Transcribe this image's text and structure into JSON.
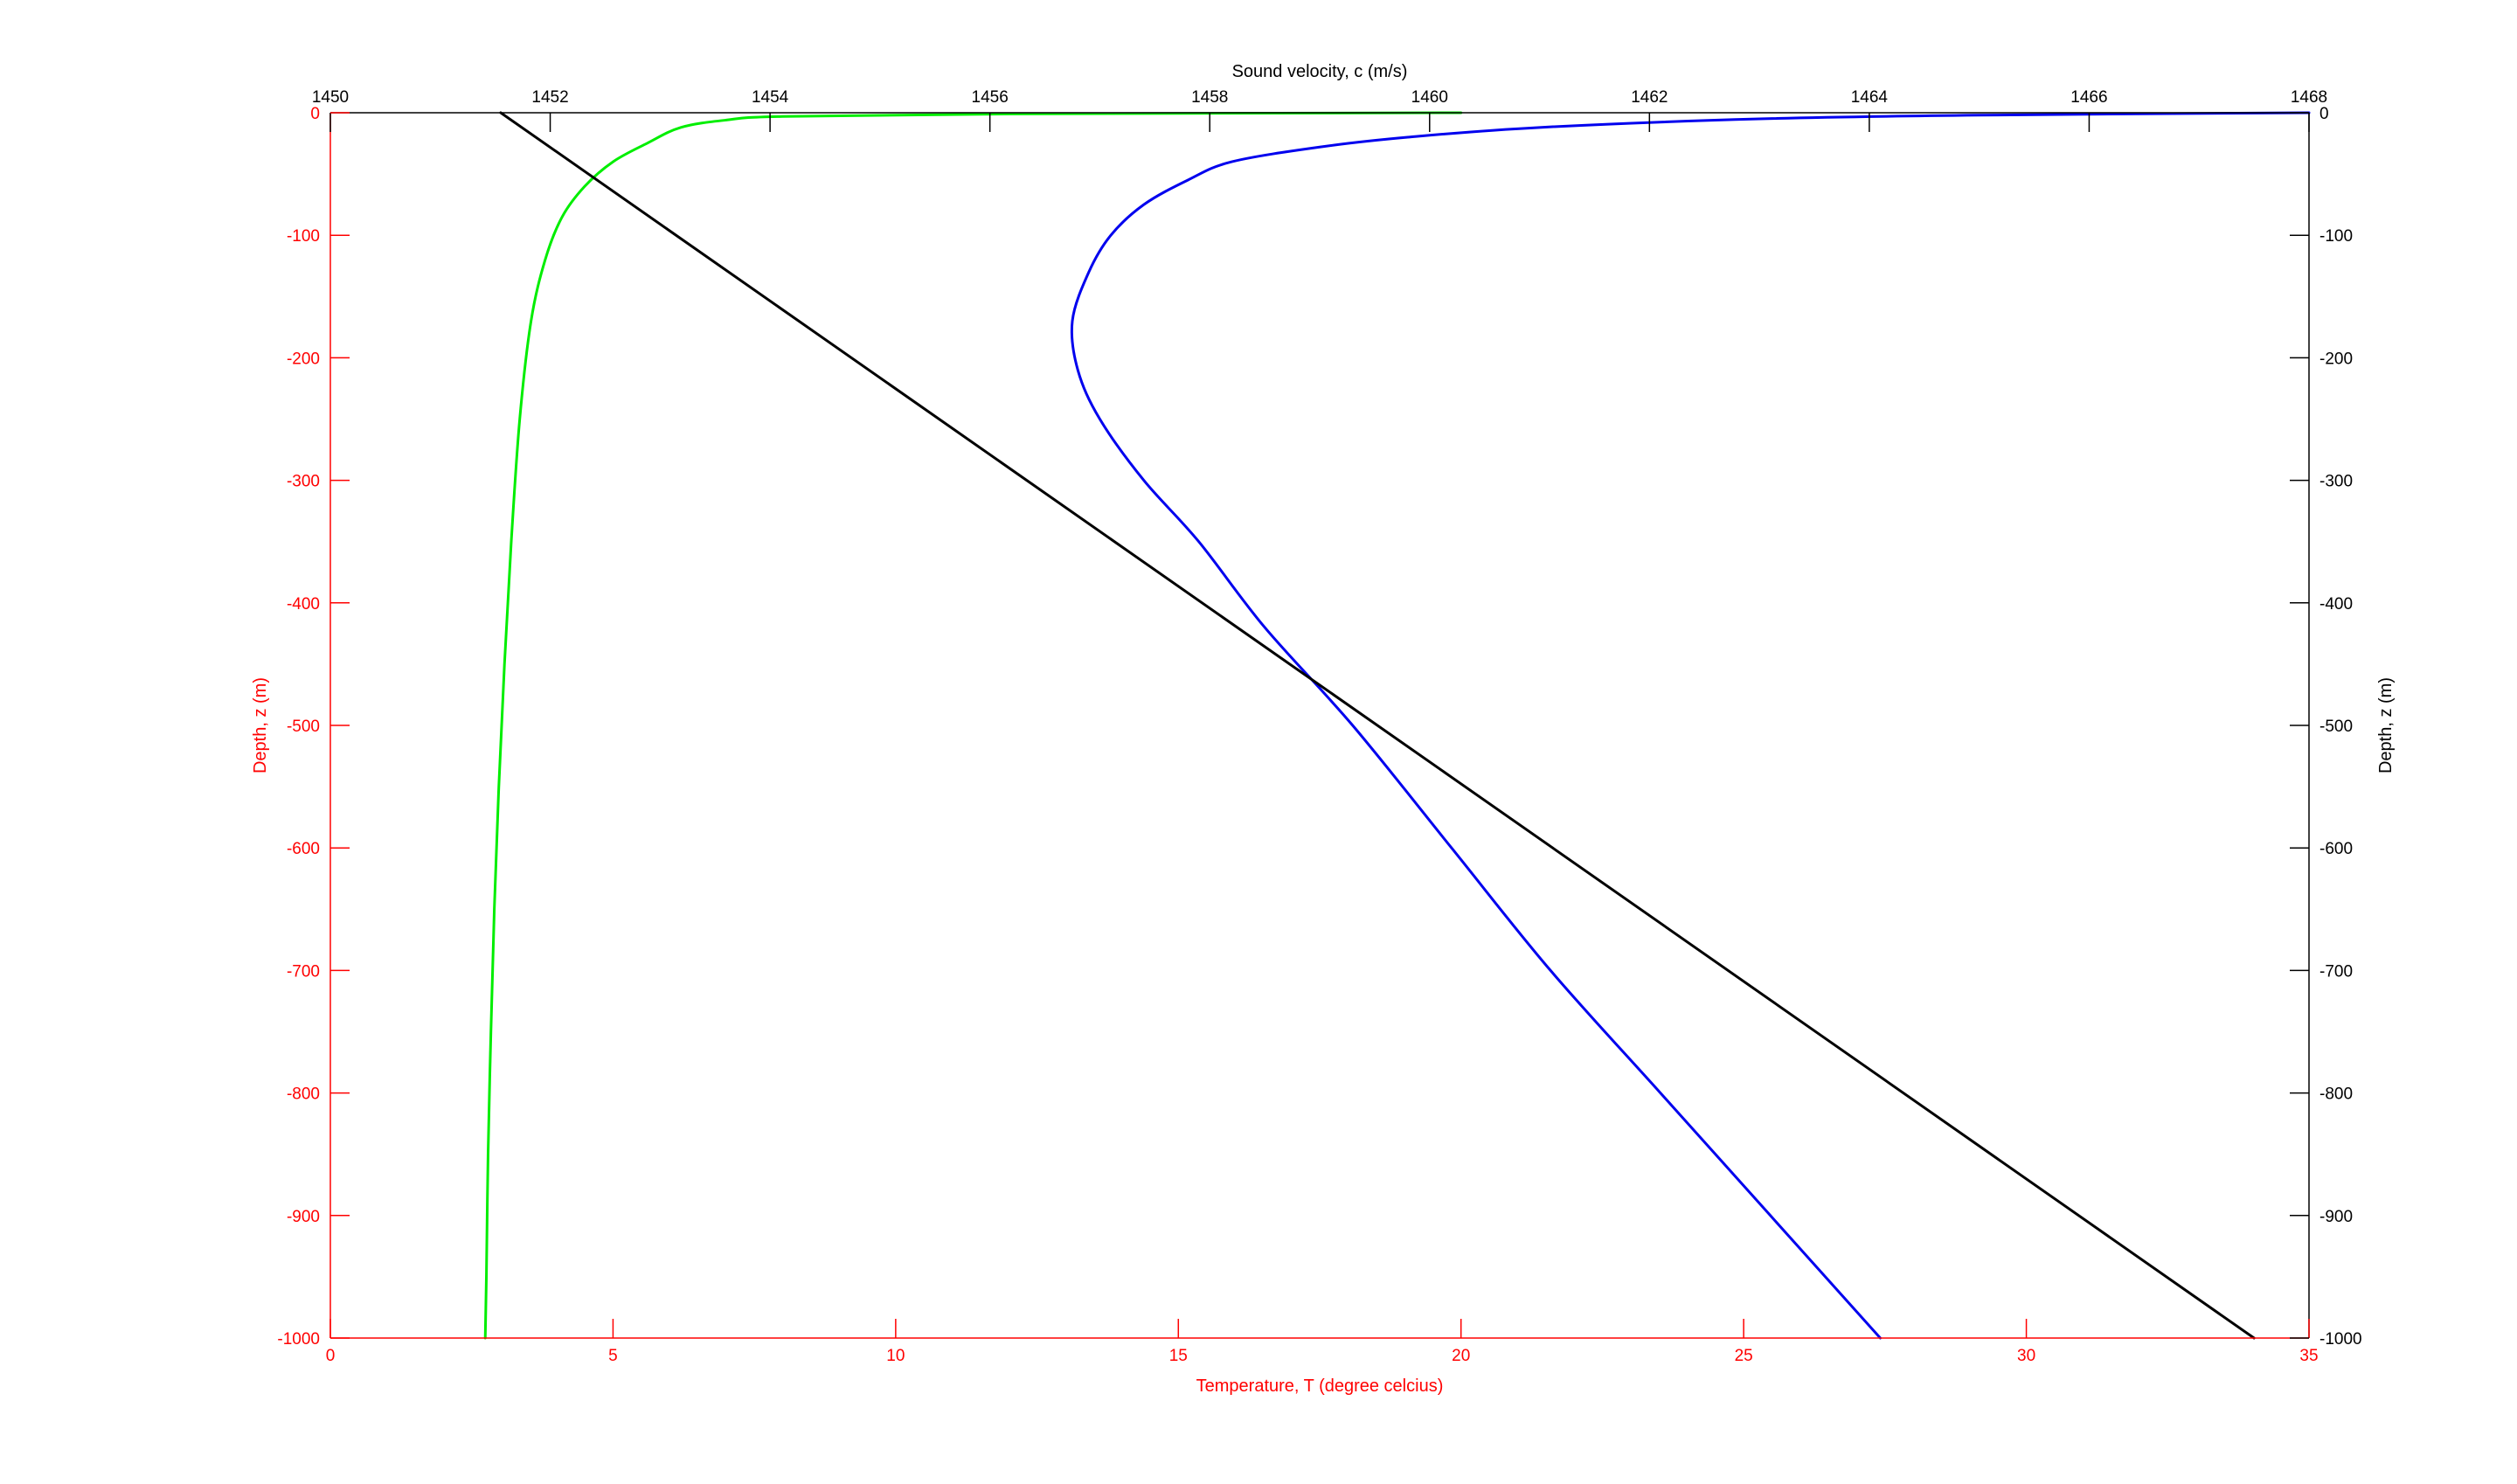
{
  "chart_data": {
    "type": "line",
    "top_axis": {
      "label": "Sound velocity, c (m/s)",
      "range": [
        1450,
        1468
      ],
      "ticks": [
        1450,
        1452,
        1454,
        1456,
        1458,
        1460,
        1462,
        1464,
        1466,
        1468
      ],
      "color": "#000000"
    },
    "bottom_axis": {
      "label": "Temperature, T (degree celcius)",
      "range": [
        0,
        35
      ],
      "ticks": [
        0,
        5,
        10,
        15,
        20,
        25,
        30,
        35
      ],
      "color": "#ff0000"
    },
    "left_axis": {
      "label": "Depth, z (m)",
      "range": [
        -1000,
        0
      ],
      "ticks": [
        0,
        -100,
        -200,
        -300,
        -400,
        -500,
        -600,
        -700,
        -800,
        -900,
        -1000
      ],
      "color": "#ff0000"
    },
    "right_axis": {
      "label": "Depth, z (m)",
      "range": [
        -1000,
        0
      ],
      "ticks": [
        0,
        -100,
        -200,
        -300,
        -400,
        -500,
        -600,
        -700,
        -800,
        -900,
        -1000
      ],
      "color": "#000000"
    },
    "series": [
      {
        "axis": "temperature",
        "color": "#00ee00",
        "points": [
          [
            20.0,
            0
          ],
          [
            12.0,
            -1
          ],
          [
            8.0,
            -3
          ],
          [
            7.0,
            -6
          ],
          [
            6.2,
            -12
          ],
          [
            5.6,
            -25
          ],
          [
            5.0,
            -40
          ],
          [
            4.5,
            -60
          ],
          [
            4.1,
            -85
          ],
          [
            3.8,
            -120
          ],
          [
            3.55,
            -170
          ],
          [
            3.35,
            -250
          ],
          [
            3.2,
            -350
          ],
          [
            3.08,
            -450
          ],
          [
            2.98,
            -550
          ],
          [
            2.9,
            -650
          ],
          [
            2.84,
            -750
          ],
          [
            2.79,
            -850
          ],
          [
            2.76,
            -950
          ],
          [
            2.74,
            -1000
          ]
        ]
      },
      {
        "axis": "velocity",
        "color": "#0000ee",
        "points": [
          [
            1468.0,
            0
          ],
          [
            1465.0,
            -2
          ],
          [
            1463.0,
            -5
          ],
          [
            1461.0,
            -12
          ],
          [
            1459.8,
            -20
          ],
          [
            1459.0,
            -28
          ],
          [
            1458.2,
            -40
          ],
          [
            1457.8,
            -55
          ],
          [
            1457.4,
            -75
          ],
          [
            1457.1,
            -100
          ],
          [
            1456.9,
            -130
          ],
          [
            1456.75,
            -170
          ],
          [
            1456.8,
            -210
          ],
          [
            1457.0,
            -250
          ],
          [
            1457.4,
            -300
          ],
          [
            1457.9,
            -350
          ],
          [
            1458.5,
            -420
          ],
          [
            1459.3,
            -500
          ],
          [
            1460.2,
            -600
          ],
          [
            1461.1,
            -700
          ],
          [
            1462.1,
            -800
          ],
          [
            1463.1,
            -900
          ],
          [
            1464.1,
            -1000
          ]
        ]
      },
      {
        "axis": "velocity",
        "color": "#000000",
        "points": [
          [
            1451.55,
            0
          ],
          [
            1467.5,
            -1000
          ]
        ]
      }
    ]
  }
}
